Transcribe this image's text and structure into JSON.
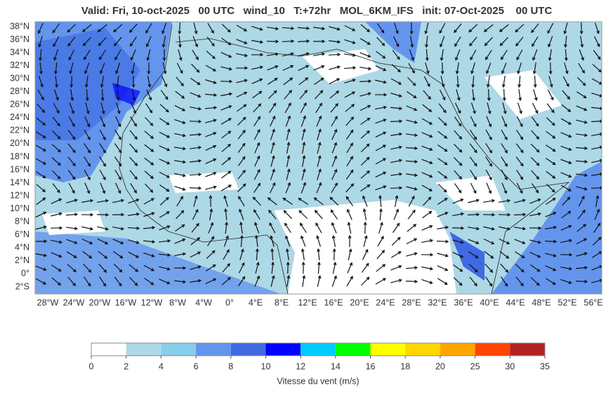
{
  "header": {
    "title": "Valid: Fri, 10-oct-2025   00 UTC   wind_10   T:+72hr   MOL_6KM_IFS   init: 07-Oct-2025    00 UTC"
  },
  "map": {
    "lat_labels": [
      "38°N",
      "36°N",
      "34°N",
      "32°N",
      "30°N",
      "28°N",
      "26°N",
      "24°N",
      "22°N",
      "20°N",
      "18°N",
      "16°N",
      "14°N",
      "12°N",
      "10°N",
      "8°N",
      "6°N",
      "4°N",
      "2°N",
      "0°",
      "2°S"
    ],
    "lon_labels": [
      "28°W",
      "24°W",
      "20°W",
      "16°W",
      "12°W",
      "8°W",
      "4°W",
      "0°",
      "4°E",
      "8°E",
      "12°E",
      "16°E",
      "20°E",
      "24°E",
      "28°E",
      "32°E",
      "36°E",
      "40°E",
      "44°E",
      "48°E",
      "52°E",
      "56°E"
    ]
  },
  "colorbar": {
    "ticks": [
      0,
      2,
      4,
      6,
      8,
      10,
      12,
      14,
      16,
      18,
      20,
      25,
      30,
      35
    ],
    "colors": [
      "#ffffff",
      "#add8e6",
      "#87ceeb",
      "#6495ed",
      "#4169e1",
      "#0000ff",
      "#00ccff",
      "#00ff00",
      "#ffff00",
      "#ffd700",
      "#ffa500",
      "#ff4500",
      "#b22222"
    ],
    "label": "Vitesse du vent (m/s)"
  }
}
